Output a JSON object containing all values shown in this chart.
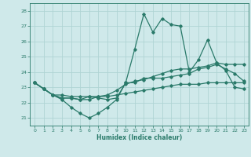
{
  "title": "",
  "xlabel": "Humidex (Indice chaleur)",
  "background_color": "#cfe9ea",
  "grid_color": "#afd4d4",
  "line_color": "#2a7a6a",
  "xlim": [
    -0.5,
    23.5
  ],
  "ylim": [
    20.5,
    28.5
  ],
  "yticks": [
    21,
    22,
    23,
    24,
    25,
    26,
    27,
    28
  ],
  "xticks": [
    0,
    1,
    2,
    3,
    4,
    5,
    6,
    7,
    8,
    9,
    10,
    11,
    12,
    13,
    14,
    15,
    16,
    17,
    18,
    19,
    20,
    21,
    22,
    23
  ],
  "line1": [
    23.3,
    22.9,
    22.5,
    22.2,
    21.7,
    21.3,
    21.0,
    21.3,
    21.7,
    22.2,
    23.3,
    25.5,
    27.8,
    26.6,
    27.5,
    27.1,
    27.0,
    24.0,
    24.8,
    26.1,
    24.6,
    24.1,
    23.0,
    22.9
  ],
  "line2": [
    23.3,
    22.9,
    22.5,
    22.3,
    22.3,
    22.2,
    22.2,
    22.4,
    22.5,
    22.8,
    23.2,
    23.4,
    23.5,
    23.7,
    23.9,
    24.1,
    24.2,
    24.2,
    24.3,
    24.4,
    24.6,
    24.5,
    24.5,
    24.5
  ],
  "line3": [
    23.3,
    22.9,
    22.5,
    22.5,
    22.4,
    22.4,
    22.4,
    22.4,
    22.4,
    22.5,
    22.6,
    22.7,
    22.8,
    22.9,
    23.0,
    23.1,
    23.2,
    23.2,
    23.2,
    23.3,
    23.3,
    23.3,
    23.3,
    23.3
  ],
  "line4": [
    23.3,
    22.9,
    22.5,
    22.3,
    22.3,
    22.2,
    22.4,
    22.3,
    22.2,
    22.3,
    23.3,
    23.3,
    23.6,
    23.6,
    23.6,
    23.7,
    23.8,
    23.9,
    24.2,
    24.3,
    24.5,
    24.2,
    23.9,
    23.4
  ]
}
